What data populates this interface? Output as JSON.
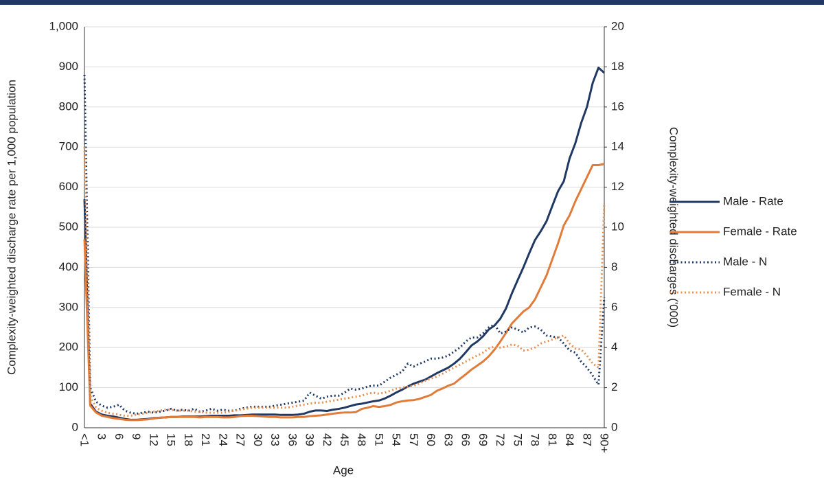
{
  "chart_data": {
    "type": "line",
    "x_label": "Age",
    "y_label": "Complexity-weighted discharge rate per 1,000 population",
    "y2_label": "Complexity-weighted discharges ('000)",
    "categories": [
      "<1",
      null,
      null,
      "3",
      null,
      null,
      "6",
      null,
      null,
      "9",
      null,
      null,
      "12",
      null,
      null,
      "15",
      null,
      null,
      "18",
      null,
      null,
      "21",
      null,
      null,
      "24",
      null,
      null,
      "27",
      null,
      null,
      "30",
      null,
      null,
      "33",
      null,
      null,
      "36",
      null,
      null,
      "39",
      null,
      null,
      "42",
      null,
      null,
      "45",
      null,
      null,
      "48",
      null,
      null,
      "51",
      null,
      null,
      "54",
      null,
      null,
      "57",
      null,
      null,
      "60",
      null,
      null,
      "63",
      null,
      null,
      "66",
      null,
      null,
      "69",
      null,
      null,
      "72",
      null,
      null,
      "75",
      null,
      null,
      "78",
      null,
      null,
      "81",
      null,
      null,
      "84",
      null,
      null,
      "87",
      null,
      null,
      "90+"
    ],
    "series": [
      {
        "name": "Male - Rate",
        "color": "#203864",
        "style": "solid",
        "values": [
          570,
          60,
          40,
          33,
          30,
          28,
          25,
          22,
          20,
          20,
          21,
          22,
          24,
          25,
          26,
          27,
          27,
          28,
          28,
          28,
          28,
          29,
          30,
          30,
          30,
          30,
          31,
          31,
          32,
          33,
          33,
          33,
          33,
          33,
          32,
          32,
          32,
          33,
          35,
          40,
          43,
          43,
          42,
          45,
          47,
          50,
          54,
          58,
          60,
          63,
          66,
          68,
          73,
          80,
          88,
          95,
          103,
          110,
          115,
          120,
          128,
          136,
          143,
          150,
          160,
          172,
          188,
          205,
          215,
          228,
          245,
          255,
          272,
          298,
          335,
          368,
          400,
          435,
          468,
          490,
          515,
          553,
          590,
          615,
          672,
          710,
          760,
          800,
          860,
          898,
          885
        ]
      },
      {
        "name": "Female - Rate",
        "color": "#E07B39",
        "style": "solid",
        "values": [
          470,
          55,
          38,
          30,
          27,
          24,
          22,
          20,
          19,
          19,
          20,
          21,
          23,
          25,
          26,
          27,
          27,
          27,
          27,
          27,
          26,
          27,
          27,
          27,
          26,
          26,
          27,
          29,
          30,
          30,
          29,
          28,
          27,
          27,
          26,
          26,
          26,
          27,
          27,
          29,
          30,
          31,
          33,
          35,
          37,
          38,
          38,
          39,
          47,
          50,
          54,
          52,
          54,
          57,
          63,
          66,
          68,
          69,
          72,
          77,
          82,
          92,
          98,
          105,
          110,
          122,
          133,
          145,
          155,
          165,
          178,
          195,
          215,
          237,
          260,
          275,
          290,
          300,
          320,
          350,
          380,
          420,
          460,
          505,
          530,
          565,
          595,
          625,
          655,
          655,
          658
        ]
      },
      {
        "name": "Male - N",
        "color": "#203864",
        "style": "dotted",
        "axis": "y2",
        "values": [
          17.6,
          2,
          1.3,
          1.1,
          1,
          1.05,
          1.15,
          0.85,
          0.75,
          0.7,
          0.75,
          0.8,
          0.75,
          0.8,
          0.85,
          0.95,
          0.85,
          0.9,
          0.85,
          0.95,
          0.8,
          0.85,
          0.95,
          0.85,
          0.9,
          0.85,
          0.85,
          0.95,
          1,
          1.05,
          1.05,
          1.05,
          1.05,
          1.1,
          1.15,
          1.2,
          1.25,
          1.3,
          1.35,
          1.75,
          1.6,
          1.45,
          1.55,
          1.6,
          1.6,
          1.75,
          1.95,
          1.9,
          1.95,
          2.05,
          2.1,
          2.1,
          2.3,
          2.5,
          2.65,
          2.8,
          3.2,
          3.05,
          3.2,
          3.3,
          3.45,
          3.45,
          3.5,
          3.6,
          3.8,
          4,
          4.3,
          4.5,
          4.5,
          4.7,
          5,
          5.15,
          4.7,
          4.8,
          5,
          4.9,
          4.75,
          5,
          5.05,
          4.9,
          4.6,
          4.55,
          4.5,
          4.2,
          3.85,
          3.75,
          3.3,
          3,
          2.6,
          2.15,
          6.5
        ]
      },
      {
        "name": "Female - N",
        "color": "#E8904F",
        "style": "dotted",
        "axis": "y2",
        "values": [
          14,
          1.6,
          1,
          0.85,
          0.75,
          0.7,
          0.65,
          0.6,
          0.6,
          0.65,
          0.7,
          0.75,
          0.8,
          0.85,
          0.9,
          0.9,
          0.85,
          0.85,
          0.85,
          0.8,
          0.8,
          0.75,
          0.75,
          0.75,
          0.75,
          0.8,
          0.85,
          0.9,
          0.95,
          1,
          1,
          1,
          1,
          1,
          1,
          1,
          1.05,
          1.1,
          1.15,
          1.2,
          1.25,
          1.25,
          1.3,
          1.35,
          1.4,
          1.45,
          1.5,
          1.55,
          1.6,
          1.7,
          1.75,
          1.7,
          1.75,
          1.85,
          1.95,
          2,
          2.05,
          2.1,
          2.2,
          2.35,
          2.45,
          2.55,
          2.7,
          2.85,
          3,
          3.15,
          3.3,
          3.45,
          3.6,
          3.75,
          3.95,
          4.05,
          4,
          4.05,
          4.15,
          4.1,
          3.85,
          3.9,
          4,
          4.2,
          4.3,
          4.4,
          4.5,
          4.6,
          4.2,
          3.95,
          3.9,
          3.6,
          3.2,
          3,
          11.2
        ]
      }
    ],
    "ylim": [
      0,
      1000
    ],
    "yticks": [
      0,
      100,
      200,
      300,
      400,
      500,
      600,
      700,
      800,
      900,
      {
        "value": 1000,
        "label": "1,000"
      }
    ],
    "y2lim": [
      0,
      20
    ],
    "y2ticks": [
      0,
      2,
      4,
      6,
      8,
      10,
      12,
      14,
      16,
      18,
      20
    ],
    "grid": true,
    "legend": "right"
  }
}
